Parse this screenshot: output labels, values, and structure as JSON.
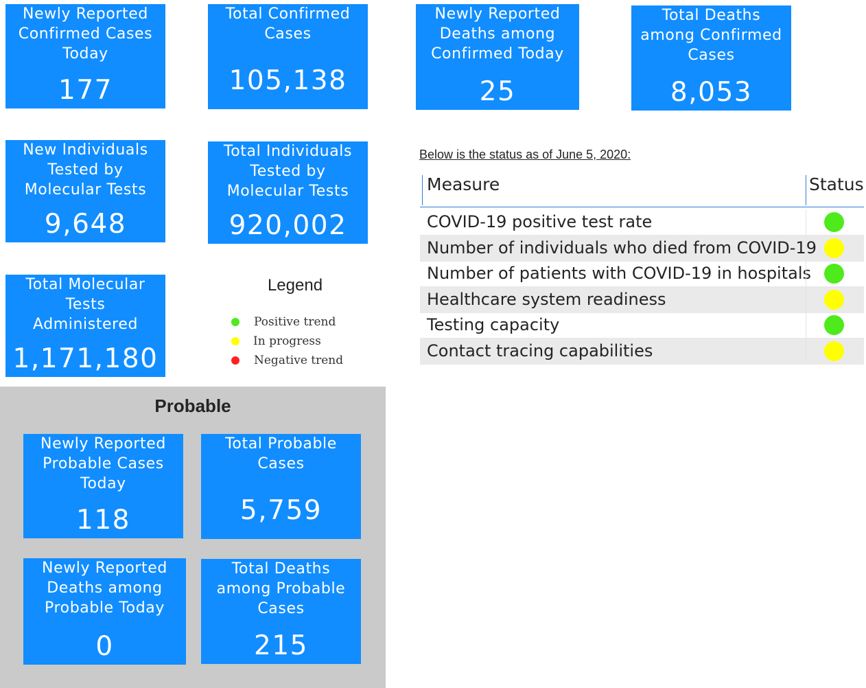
{
  "colors": {
    "card_background": "#118dff",
    "positive": "#4eea1c",
    "in_progress": "#ffff00",
    "negative": "#ff2222"
  },
  "confirmed": {
    "new_cases_today": {
      "label": "Newly Reported\nConfirmed Cases\nToday",
      "value": "177"
    },
    "total_cases": {
      "label": "Total Confirmed\nCases",
      "value": "105,138"
    },
    "new_deaths_today": {
      "label": "Newly Reported\nDeaths among\nConfirmed Today",
      "value": "25"
    },
    "total_deaths": {
      "label": "Total Deaths\namong Confirmed\nCases",
      "value": "8,053"
    }
  },
  "testing": {
    "new_tested": {
      "label": "New Individuals\nTested by\nMolecular Tests",
      "value": "9,648"
    },
    "total_tested": {
      "label": "Total Individuals\nTested by\nMolecular Tests",
      "value": "920,002"
    },
    "total_tests": {
      "label": "Total Molecular\nTests\nAdministered",
      "value": "1,171,180"
    }
  },
  "legend": {
    "title": "Legend",
    "items": [
      {
        "label": "Positive trend",
        "color": "#4eea1c"
      },
      {
        "label": "In progress",
        "color": "#ffff00"
      },
      {
        "label": "Negative trend",
        "color": "#ff2222"
      }
    ]
  },
  "probable": {
    "title": "Probable",
    "new_cases_today": {
      "label": "Newly Reported\nProbable Cases\nToday",
      "value": "118"
    },
    "total_cases": {
      "label": "Total Probable\nCases",
      "value": "5,759"
    },
    "new_deaths_today": {
      "label": "Newly Reported\nDeaths among\nProbable Today",
      "value": "0"
    },
    "total_deaths": {
      "label": "Total Deaths\namong Probable\nCases",
      "value": "215"
    }
  },
  "status_table": {
    "caption": "Below is the status as of June 5, 2020:",
    "headers": {
      "measure": "Measure",
      "status": "Status"
    },
    "rows": [
      {
        "measure": "COVID-19 positive test rate",
        "status": "positive",
        "color": "#4eea1c"
      },
      {
        "measure": "Number of individuals who died from COVID-19",
        "status": "in progress",
        "color": "#ffff00"
      },
      {
        "measure": "Number of patients with COVID-19 in hospitals",
        "status": "positive",
        "color": "#4eea1c"
      },
      {
        "measure": "Healthcare system readiness",
        "status": "in progress",
        "color": "#ffff00"
      },
      {
        "measure": "Testing capacity",
        "status": "positive",
        "color": "#4eea1c"
      },
      {
        "measure": "Contact tracing capabilities",
        "status": "in progress",
        "color": "#ffff00"
      }
    ]
  }
}
